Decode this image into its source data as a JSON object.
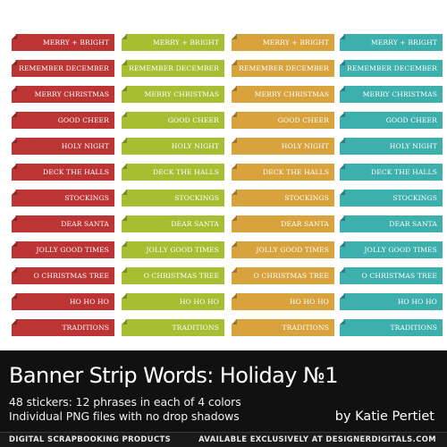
{
  "colors": {
    "red": "#bc3534",
    "green": "#a7be33",
    "gold": "#d8a33d",
    "teal": "#3db0ae",
    "footer_bg": "#111111"
  },
  "columns": [
    {
      "color": "#bc3534",
      "phrases": [
        "MERRY + BRIGHT",
        "REMEMBER DECEMBER",
        "MERRY CHRISTMAS",
        "GOOD CHEER",
        "HOLY NIGHT",
        "DECK THE HALLS",
        "STOCKINGS",
        "DEAR SANTA",
        "JOLLY GOOD TIMES",
        "O CHRISTMAS TREE",
        "HO HO HO",
        "TRADITIONS"
      ]
    },
    {
      "color": "#a7be33",
      "phrases": [
        "MERRY + BRIGHT",
        "REMEMBER DECEMBER",
        "MERRY CHRISTMAS",
        "GOOD CHEER",
        "HOLY NIGHT",
        "DECK THE HALLS",
        "STOCKINGS",
        "DEAR SANTA",
        "JOLLY GOOD TIMES",
        "O CHRISTMAS TREE",
        "HO HO HO",
        "TRADITIONS"
      ]
    },
    {
      "color": "#d8a33d",
      "phrases": [
        "MERRY + BRIGHT",
        "REMEMBER DECEMBER",
        "MERRY CHRISTMAS",
        "GOOD CHEER",
        "HOLY NIGHT",
        "DECK THE HALLS",
        "STOCKINGS",
        "DEAR SANTA",
        "JOLLY GOOD TIMES",
        "O CHRISTMAS TREE",
        "HO HO HO",
        "TRADITIONS"
      ]
    },
    {
      "color": "#3db0ae",
      "phrases": [
        "MERRY + BRIGHT",
        "REMEMBER DECEMBER",
        "MERRY CHRISTMAS",
        "GOOD CHEER",
        "HOLY NIGHT",
        "DECK THE HALLS",
        "STOCKINGS",
        "DEAR SANTA",
        "JOLLY GOOD TIMES",
        "O CHRISTMAS TREE",
        "HO HO HO",
        "TRADITIONS"
      ]
    }
  ],
  "footer": {
    "title": "Banner Strip Words: Holiday №1",
    "line1": "48 stickers: 12 phrases in each of 4 colors",
    "line2": "Individual PNG files with no drop shadows",
    "author": "by Katie Pertiet",
    "bar_left": "DIGITAL SCRAPBOOKING PRODUCTS",
    "bar_right": "AVAILABLE EXCLUSIVELY AT DESIGNERDIGITALS.COM"
  }
}
